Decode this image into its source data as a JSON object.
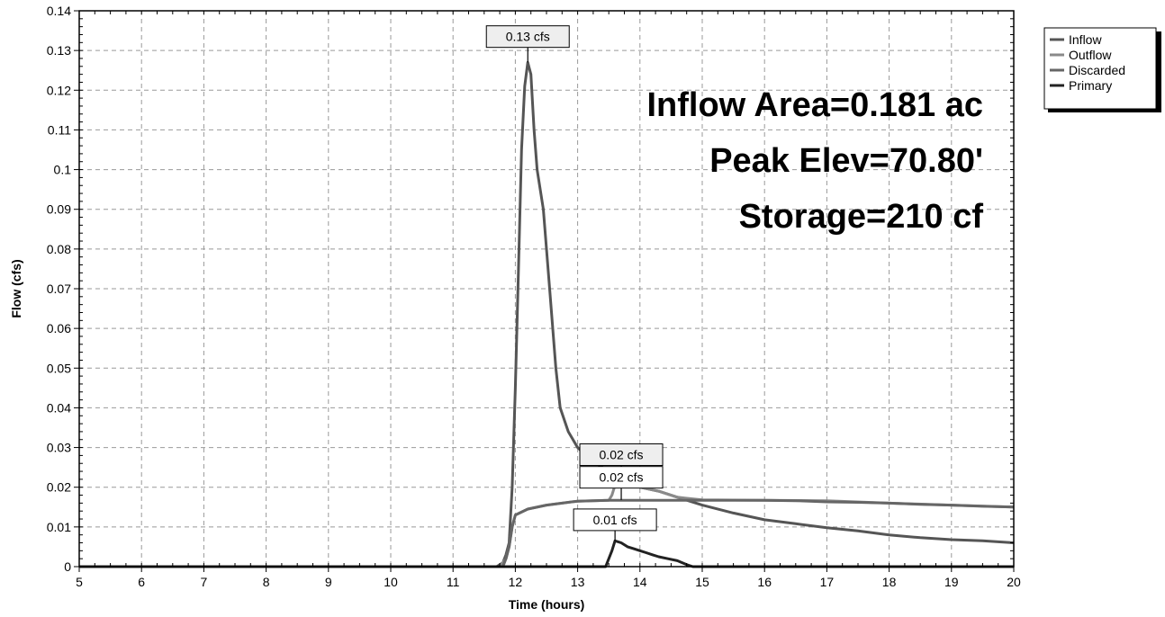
{
  "chart_data": {
    "type": "line",
    "xlabel": "Time (hours)",
    "ylabel": "Flow (cfs)",
    "xlim": [
      5,
      20
    ],
    "ylim": [
      0,
      0.14
    ],
    "xticks": [
      "5",
      "6",
      "7",
      "8",
      "9",
      "10",
      "11",
      "12",
      "13",
      "14",
      "15",
      "16",
      "17",
      "18",
      "19",
      "20"
    ],
    "yticks": [
      "0",
      "0.01",
      "0.02",
      "0.03",
      "0.04",
      "0.05",
      "0.06",
      "0.07",
      "0.08",
      "0.09",
      "0.1",
      "0.11",
      "0.12",
      "0.13",
      "0.14"
    ],
    "grid": true,
    "legend_position": "top-right",
    "summary_lines": [
      "Inflow Area=0.181 ac",
      "Peak Elev=70.80'",
      "Storage=210 cf"
    ],
    "series": [
      {
        "name": "Inflow",
        "color": "#555555",
        "points": [
          [
            5,
            0
          ],
          [
            11.7,
            0
          ],
          [
            11.8,
            0.001
          ],
          [
            11.85,
            0.003
          ],
          [
            11.9,
            0.006
          ],
          [
            11.95,
            0.02
          ],
          [
            12.0,
            0.045
          ],
          [
            12.05,
            0.075
          ],
          [
            12.1,
            0.105
          ],
          [
            12.15,
            0.121
          ],
          [
            12.2,
            0.127
          ],
          [
            12.25,
            0.124
          ],
          [
            12.3,
            0.11
          ],
          [
            12.35,
            0.1
          ],
          [
            12.45,
            0.09
          ],
          [
            12.55,
            0.07
          ],
          [
            12.65,
            0.05
          ],
          [
            12.72,
            0.04
          ],
          [
            12.85,
            0.034
          ],
          [
            13.0,
            0.03
          ],
          [
            13.2,
            0.027
          ],
          [
            13.4,
            0.025
          ],
          [
            13.6,
            0.023
          ],
          [
            13.8,
            0.021
          ],
          [
            14.0,
            0.02
          ],
          [
            14.3,
            0.019
          ],
          [
            14.6,
            0.0175
          ],
          [
            15.0,
            0.0155
          ],
          [
            15.5,
            0.0135
          ],
          [
            16.0,
            0.0118
          ],
          [
            16.5,
            0.0108
          ],
          [
            17.0,
            0.0098
          ],
          [
            17.5,
            0.009
          ],
          [
            18.0,
            0.008
          ],
          [
            18.5,
            0.0073
          ],
          [
            19.0,
            0.0068
          ],
          [
            19.5,
            0.0065
          ],
          [
            20.0,
            0.006
          ]
        ]
      },
      {
        "name": "Outflow",
        "color": "#8a8a8a",
        "points": [
          [
            5,
            0
          ],
          [
            11.75,
            0
          ],
          [
            11.85,
            0.002
          ],
          [
            11.9,
            0.005
          ],
          [
            11.95,
            0.01
          ],
          [
            12.0,
            0.013
          ],
          [
            12.2,
            0.0145
          ],
          [
            12.5,
            0.0155
          ],
          [
            13.0,
            0.0165
          ],
          [
            13.5,
            0.0167
          ],
          [
            13.55,
            0.018
          ],
          [
            13.6,
            0.0205
          ],
          [
            13.7,
            0.021
          ],
          [
            14.0,
            0.02
          ],
          [
            14.3,
            0.019
          ],
          [
            14.6,
            0.0175
          ],
          [
            15.0,
            0.0168
          ],
          [
            16.0,
            0.0167
          ],
          [
            17.0,
            0.0166
          ],
          [
            18.0,
            0.016
          ],
          [
            19.0,
            0.0155
          ],
          [
            20.0,
            0.015
          ]
        ]
      },
      {
        "name": "Discarded",
        "color": "#666666",
        "points": [
          [
            5,
            0
          ],
          [
            11.8,
            0
          ],
          [
            11.85,
            0.002
          ],
          [
            11.9,
            0.005
          ],
          [
            11.95,
            0.01
          ],
          [
            12.0,
            0.013
          ],
          [
            12.2,
            0.0145
          ],
          [
            12.5,
            0.0155
          ],
          [
            13.0,
            0.0165
          ],
          [
            13.5,
            0.0167
          ],
          [
            14.0,
            0.0167
          ],
          [
            15.0,
            0.0167
          ],
          [
            16.0,
            0.0167
          ],
          [
            16.5,
            0.0166
          ],
          [
            17.0,
            0.0163
          ],
          [
            17.5,
            0.0162
          ],
          [
            18.0,
            0.016
          ],
          [
            18.5,
            0.0157
          ],
          [
            19.0,
            0.0155
          ],
          [
            19.5,
            0.0152
          ],
          [
            20.0,
            0.015
          ]
        ]
      },
      {
        "name": "Primary",
        "color": "#222222",
        "points": [
          [
            5,
            0
          ],
          [
            13.45,
            0
          ],
          [
            13.5,
            0.002
          ],
          [
            13.55,
            0.004
          ],
          [
            13.6,
            0.0065
          ],
          [
            13.7,
            0.006
          ],
          [
            13.8,
            0.005
          ],
          [
            13.9,
            0.0045
          ],
          [
            14.0,
            0.004
          ],
          [
            14.1,
            0.0035
          ],
          [
            14.2,
            0.003
          ],
          [
            14.3,
            0.0025
          ],
          [
            14.45,
            0.002
          ],
          [
            14.6,
            0.0015
          ],
          [
            14.75,
            0.0005
          ],
          [
            14.85,
            0
          ],
          [
            20,
            0
          ]
        ]
      }
    ],
    "peak_labels": [
      {
        "text": "0.13 cfs",
        "x": 12.2,
        "y": 0.127,
        "label_y": 0.1335,
        "fill": "#eeeeee"
      },
      {
        "text": "0.02 cfs",
        "x": 13.7,
        "y": 0.021,
        "label_y": 0.0282,
        "fill": "#eeeeee"
      },
      {
        "text": "0.02 cfs",
        "x": 13.7,
        "y": 0.0168,
        "label_y": 0.0225,
        "fill": "#ffffff"
      },
      {
        "text": "0.01 cfs",
        "x": 13.6,
        "y": 0.0065,
        "label_y": 0.0118,
        "fill": "#ffffff"
      }
    ]
  }
}
